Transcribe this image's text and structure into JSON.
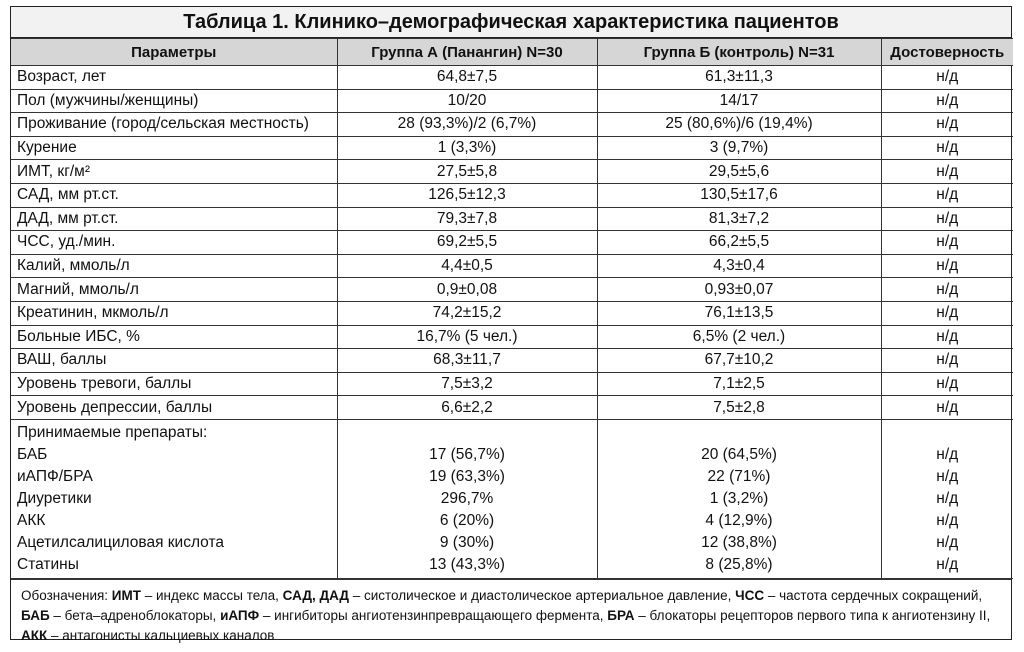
{
  "title": "Таблица 1. Клинико–демографическая характеристика пациентов",
  "headers": [
    "Параметры",
    "Группа А (Панангин) N=30",
    "Группа Б (контроль) N=31",
    "Достоверность"
  ],
  "rows": [
    {
      "param": "Возраст, лет",
      "a": "64,8±7,5",
      "b": "61,3±11,3",
      "sig": "н/д"
    },
    {
      "param": "Пол (мужчины/женщины)",
      "a": "10/20",
      "b": "14/17",
      "sig": "н/д"
    },
    {
      "param": "Проживание (город/сельская местность)",
      "a": "28 (93,3%)/2 (6,7%)",
      "b": "25 (80,6%)/6 (19,4%)",
      "sig": "н/д"
    },
    {
      "param": "Курение",
      "a": "1 (3,3%)",
      "b": "3 (9,7%)",
      "sig": "н/д"
    },
    {
      "param": "ИМТ, кг/м²",
      "a": "27,5±5,8",
      "b": "29,5±5,6",
      "sig": "н/д"
    },
    {
      "param": "САД, мм рт.ст.",
      "a": "126,5±12,3",
      "b": "130,5±17,6",
      "sig": "н/д"
    },
    {
      "param": "ДАД, мм рт.ст.",
      "a": "79,3±7,8",
      "b": "81,3±7,2",
      "sig": "н/д"
    },
    {
      "param": "ЧСС, уд./мин.",
      "a": "69,2±5,5",
      "b": "66,2±5,5",
      "sig": "н/д"
    },
    {
      "param": "Калий, ммоль/л",
      "a": "4,4±0,5",
      "b": "4,3±0,4",
      "sig": "н/д"
    },
    {
      "param": "Магний, ммоль/л",
      "a": "0,9±0,08",
      "b": "0,93±0,07",
      "sig": "н/д"
    },
    {
      "param": "Креатинин, мкмоль/л",
      "a": "74,2±15,2",
      "b": "76,1±13,5",
      "sig": "н/д"
    },
    {
      "param": "Больные ИБС, %",
      "a": "16,7% (5 чел.)",
      "b": "6,5% (2 чел.)",
      "sig": "н/д"
    },
    {
      "param": "ВАШ, баллы",
      "a": "68,3±11,7",
      "b": "67,7±10,2",
      "sig": "н/д"
    },
    {
      "param": "Уровень тревоги, баллы",
      "a": "7,5±3,2",
      "b": "7,1±2,5",
      "sig": "н/д"
    },
    {
      "param": "Уровень депрессии, баллы",
      "a": "6,6±2,2",
      "b": "7,5±2,8",
      "sig": "н/д"
    }
  ],
  "drugs": {
    "heading": "Принимаемые препараты:",
    "items": [
      {
        "param": "БАБ",
        "a": "17 (56,7%)",
        "b": "20 (64,5%)",
        "sig": "н/д"
      },
      {
        "param": "иАПФ/БРА",
        "a": "19 (63,3%)",
        "b": "22 (71%)",
        "sig": "н/д"
      },
      {
        "param": "Диуретики",
        "a": "296,7%",
        "b": "1 (3,2%)",
        "sig": "н/д"
      },
      {
        "param": "АКК",
        "a": "6 (20%)",
        "b": "4 (12,9%)",
        "sig": "н/д"
      },
      {
        "param": "Ацетилсалициловая кислота",
        "a": "9 (30%)",
        "b": "12 (38,8%)",
        "sig": "н/д"
      },
      {
        "param": "Статины",
        "a": "13 (43,3%)",
        "b": "8 (25,8%)",
        "sig": "н/д"
      }
    ]
  },
  "notes": {
    "prefix": "Обозначения: ",
    "parts": [
      {
        "abbr": "ИМТ",
        "text": " – индекс массы тела, "
      },
      {
        "abbr": "САД, ДАД",
        "text": " – систолическое и диастолическое артериальное давление, "
      },
      {
        "abbr": "ЧСС",
        "text": " – частота сердечных сокращений, "
      },
      {
        "abbr": "БАБ",
        "text": " – бета–адреноблокаторы, "
      },
      {
        "abbr": "иАПФ",
        "text": " – ингибиторы ангиотензинпревращающего фермента, "
      },
      {
        "abbr": "БРА",
        "text": " – блокаторы рецепторов первого типа к ангиотензину II, "
      },
      {
        "abbr": "АКК",
        "text": " – антагонисты кальциевых каналов"
      }
    ]
  }
}
